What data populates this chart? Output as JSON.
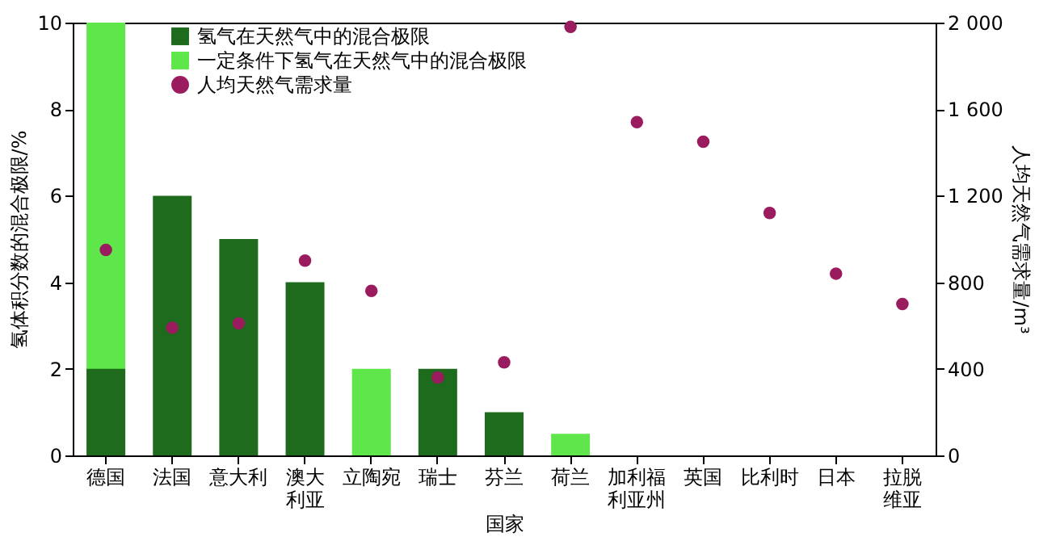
{
  "chart_data": {
    "type": "bar",
    "xlabel": "国家",
    "ylabel": "氢体积分数的混合极限/%",
    "y2label": "人均天然气需求量/m³",
    "categories": [
      "德国",
      "法国",
      "意大利",
      "澳大利亚",
      "立陶宛",
      "瑞士",
      "芬兰",
      "荷兰",
      "加利福利亚州",
      "英国",
      "比利时",
      "日本",
      "拉脱维亚"
    ],
    "series": [
      {
        "name": "氢气在天然气中的混合极限",
        "color": "#1e6b1e",
        "values": [
          2,
          6,
          5,
          4,
          null,
          2,
          1,
          null,
          null,
          null,
          null,
          null,
          null
        ]
      },
      {
        "name": "一定条件下氢气在天然气中的混合极限",
        "color": "#5ee64a",
        "values": [
          10,
          null,
          null,
          null,
          2,
          null,
          null,
          0.5,
          null,
          null,
          null,
          null,
          null
        ]
      },
      {
        "name": "人均天然气需求量",
        "type": "scatter",
        "axis": "y2",
        "color": "#9b1b5f",
        "values": [
          950,
          590,
          610,
          900,
          760,
          360,
          430,
          1980,
          1540,
          1450,
          1120,
          840,
          700
        ]
      }
    ],
    "ylim": [
      0,
      10
    ],
    "yticks": [
      0,
      2,
      4,
      6,
      8,
      10
    ],
    "y2lim": [
      0,
      2000
    ],
    "y2ticks": [
      0,
      400,
      800,
      {
        "value": 1200,
        "label": "1 200"
      },
      {
        "value": 1600,
        "label": "1 600"
      },
      {
        "value": 2000,
        "label": "2 000"
      }
    ],
    "legend": "top left",
    "grid": false,
    "marker": "circle"
  }
}
